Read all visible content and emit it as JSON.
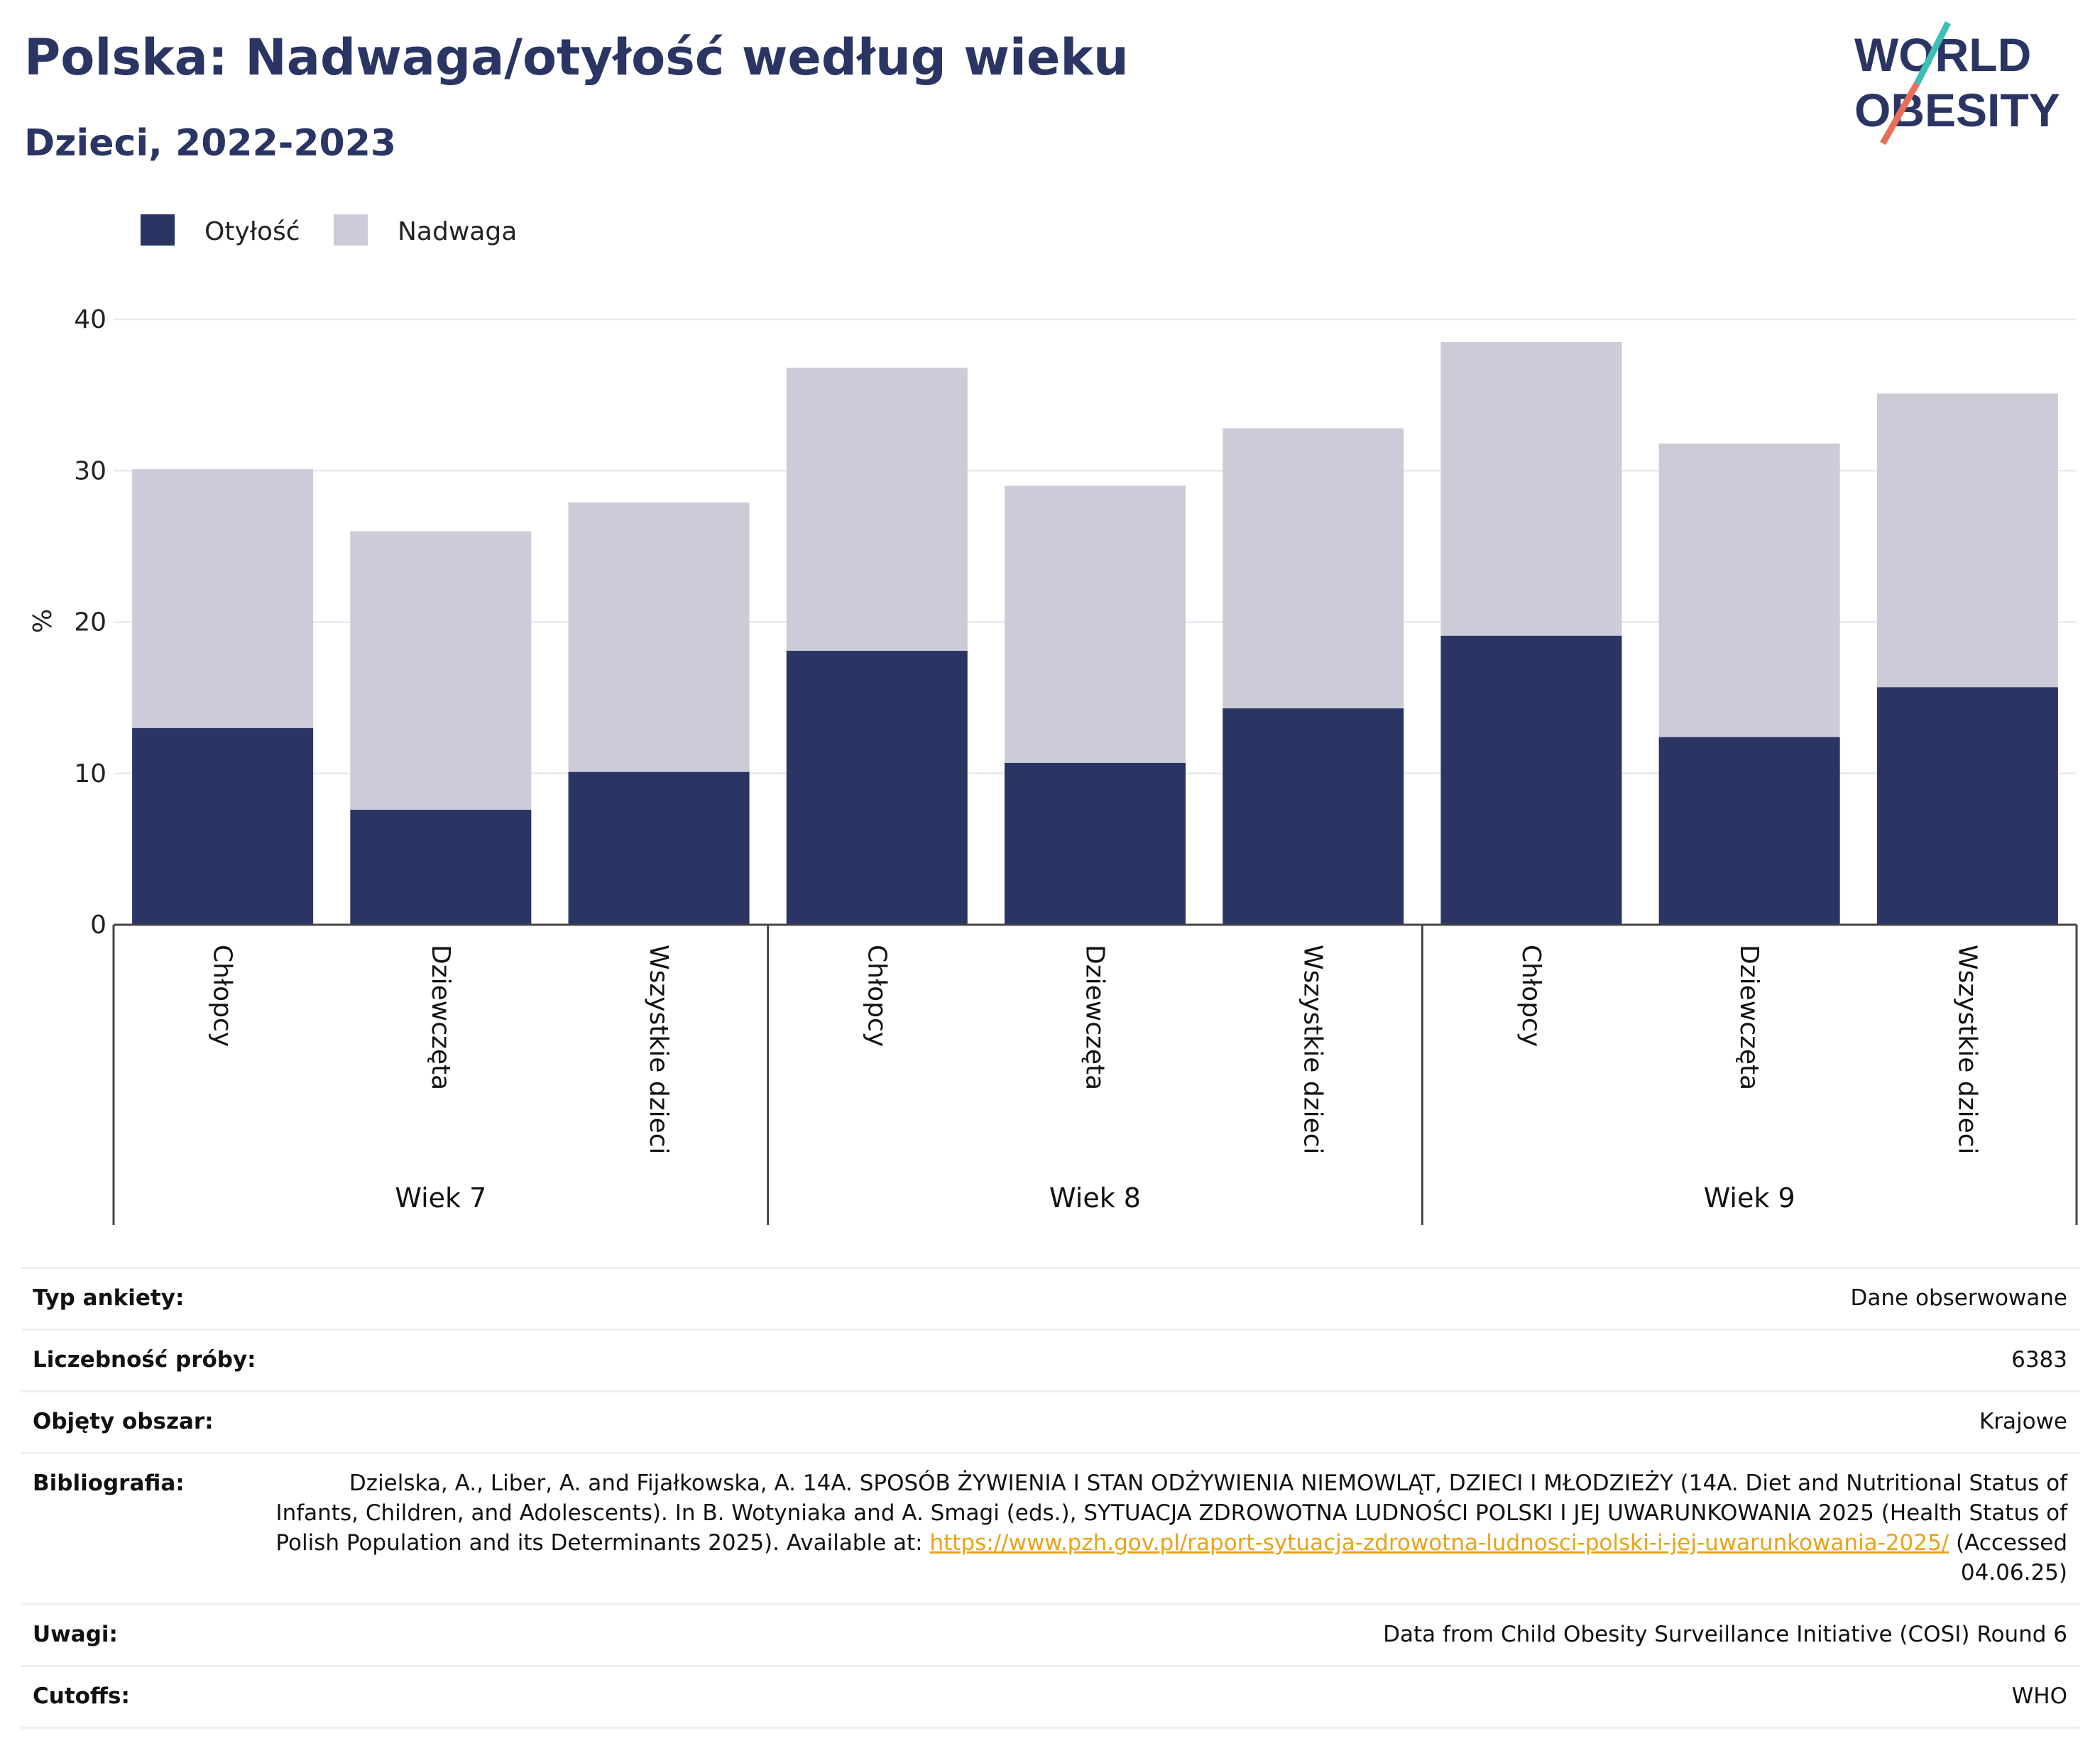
{
  "header": {
    "title": "Polska: Nadwaga/otyłość według wieku",
    "subtitle": "Dzieci, 2022-2023",
    "logo_line1": "WORLD",
    "logo_line2": "OBESITY"
  },
  "colors": {
    "obesity": "#2a3563",
    "overweight": "#cbccd8",
    "accent_teal": "#3bbfb7",
    "accent_coral": "#e8705a"
  },
  "chart_data": {
    "type": "bar",
    "stacked": true,
    "ylabel": "%",
    "ylim": [
      0,
      40
    ],
    "yticks": [
      0,
      10,
      20,
      30,
      40
    ],
    "grid": true,
    "legend_position": "top-left",
    "groups": [
      "Wiek 7",
      "Wiek 8",
      "Wiek 9"
    ],
    "categories": [
      "Chłopcy",
      "Dziewczęta",
      "Wszystkie dzieci",
      "Chłopcy",
      "Dziewczęta",
      "Wszystkie dzieci",
      "Chłopcy",
      "Dziewczęta",
      "Wszystkie dzieci"
    ],
    "series": [
      {
        "name": "Otyłość",
        "values": [
          13.0,
          7.6,
          10.1,
          18.1,
          10.7,
          14.3,
          19.1,
          12.4,
          15.7
        ]
      },
      {
        "name": "Nadwaga",
        "values": [
          17.1,
          18.4,
          17.8,
          18.7,
          18.3,
          18.5,
          19.4,
          19.4,
          19.4
        ]
      }
    ]
  },
  "info": {
    "rows": [
      {
        "key": "Typ ankiety:",
        "value": "Dane obserwowane"
      },
      {
        "key": "Liczebność próby:",
        "value": "6383"
      },
      {
        "key": "Objęty obszar:",
        "value": "Krajowe"
      },
      {
        "key": "Bibliografia:",
        "value": "Dzielska, A., Liber, A. and Fijałkowska, A. 14A. SPOSÓB ŻYWIENIA I STAN ODŻYWIENIA NIEMOWLĄT, DZIECI I MŁODZIEŻY (14A. Diet and Nutritional Status of Infants, Children, and Adolescents). In B. Wotyniaka and A. Smagi (eds.), SYTUACJA ZDROWOTNA LUDNOŚCI POLSKI I JEJ UWARUNKOWANIA 2025 (Health Status of Polish Population and its Determinants 2025). Available at:",
        "link": "https://www.pzh.gov.pl/raport-sytuacja-zdrowotna-ludnosci-polski-i-jej-uwarunkowania-2025/",
        "suffix": "(Accessed 04.06.25)"
      },
      {
        "key": "Uwagi:",
        "value": "Data from Child Obesity Surveillance Initiative (COSI) Round 6"
      },
      {
        "key": "Cutoffs:",
        "value": "WHO"
      }
    ]
  }
}
